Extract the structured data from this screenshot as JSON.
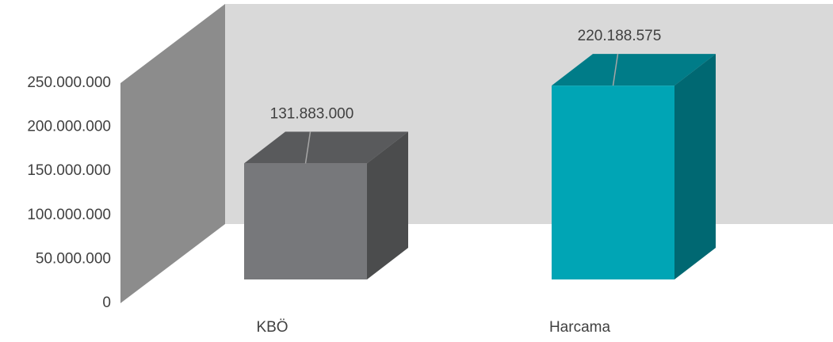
{
  "chart_data": {
    "type": "bar3d",
    "categories": [
      "KBÖ",
      "Harcama"
    ],
    "values": [
      131883000,
      220188575
    ],
    "value_labels": [
      "131.883.000",
      "220.188.575"
    ],
    "colors": [
      "#77787b",
      "#00a5b5"
    ],
    "ylim": [
      0,
      250000000
    ],
    "yticks": [
      0,
      {
        "value": 50000000,
        "label": "50.000.000"
      },
      {
        "value": 100000000,
        "label": "100.000.000"
      },
      {
        "value": 150000000,
        "label": "150.000.000"
      },
      {
        "value": 200000000,
        "label": "200.000.000"
      },
      {
        "value": 250000000,
        "label": "250.000.000"
      }
    ]
  }
}
